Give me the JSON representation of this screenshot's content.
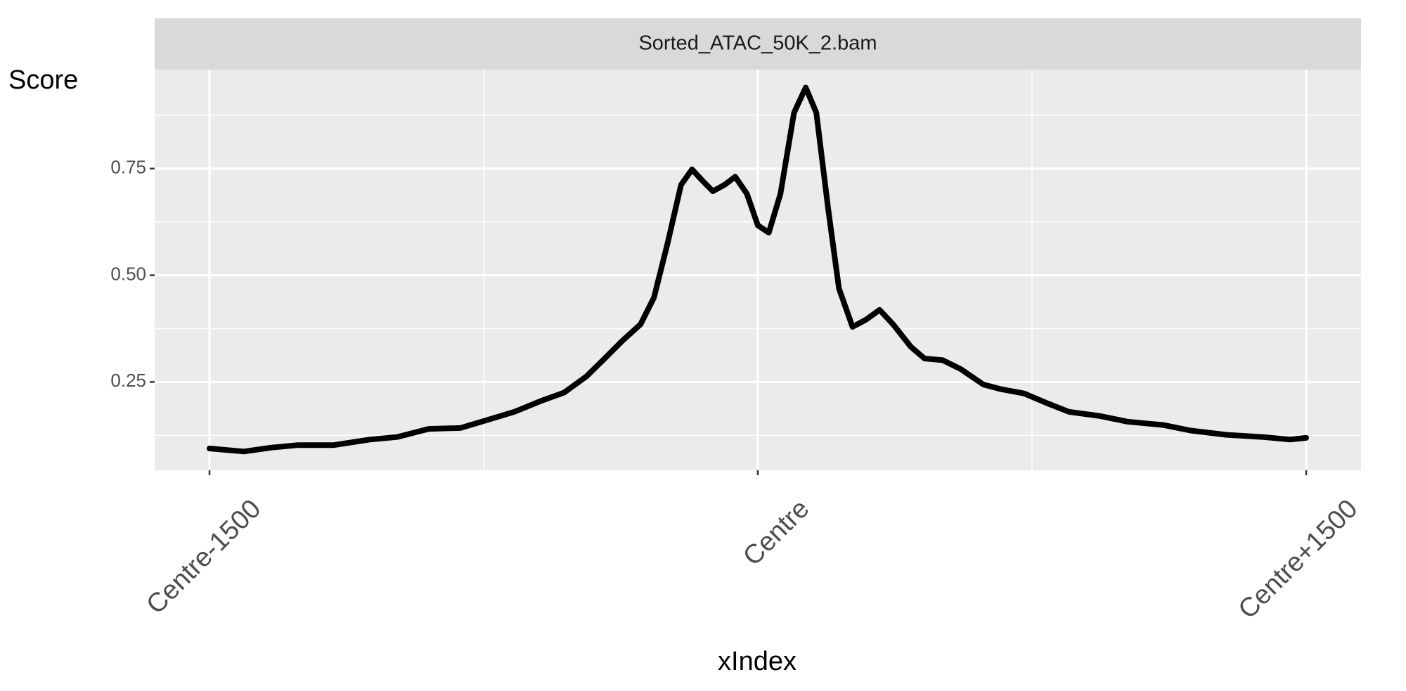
{
  "chart_data": {
    "type": "line",
    "panel_title": "Sorted_ATAC_50K_2.bam",
    "y_label": "Score",
    "x_label": "xIndex",
    "x": [
      -1500,
      -1406,
      -1332,
      -1258,
      -1160,
      -1061,
      -987,
      -900,
      -814,
      -740,
      -666,
      -592,
      -530,
      -469,
      -419,
      -370,
      -321,
      -284,
      -247,
      -210,
      -180,
      -153,
      -123,
      -91,
      -62,
      -30,
      0,
      30,
      62,
      99,
      131,
      160,
      192,
      222,
      259,
      296,
      333,
      370,
      419,
      456,
      506,
      555,
      617,
      666,
      728,
      789,
      851,
      937,
      1011,
      1110,
      1184,
      1283,
      1382,
      1456,
      1500
    ],
    "series": [
      {
        "color": "#000000",
        "values": [
          0.094,
          0.087,
          0.096,
          0.102,
          0.102,
          0.115,
          0.121,
          0.14,
          0.142,
          0.161,
          0.18,
          0.206,
          0.225,
          0.263,
          0.305,
          0.347,
          0.385,
          0.448,
          0.575,
          0.712,
          0.748,
          0.723,
          0.697,
          0.712,
          0.731,
          0.691,
          0.617,
          0.6,
          0.691,
          0.881,
          0.94,
          0.881,
          0.659,
          0.469,
          0.379,
          0.396,
          0.419,
          0.385,
          0.332,
          0.305,
          0.301,
          0.28,
          0.244,
          0.233,
          0.223,
          0.201,
          0.18,
          0.17,
          0.157,
          0.149,
          0.136,
          0.126,
          0.121,
          0.115,
          0.119
        ]
      }
    ],
    "xlim": [
      -1650,
      1650
    ],
    "xticks": [
      {
        "value": -1500,
        "label": "Centre-1500"
      },
      {
        "value": 0,
        "label": "Centre"
      },
      {
        "value": 1500,
        "label": "Centre+1500"
      }
    ],
    "ylim": [
      0.043,
      0.982
    ],
    "yticks": [
      {
        "value": 0.25,
        "label": "0.25"
      },
      {
        "value": 0.5,
        "label": "0.50"
      },
      {
        "value": 0.75,
        "label": "0.75"
      }
    ],
    "grid": true
  }
}
